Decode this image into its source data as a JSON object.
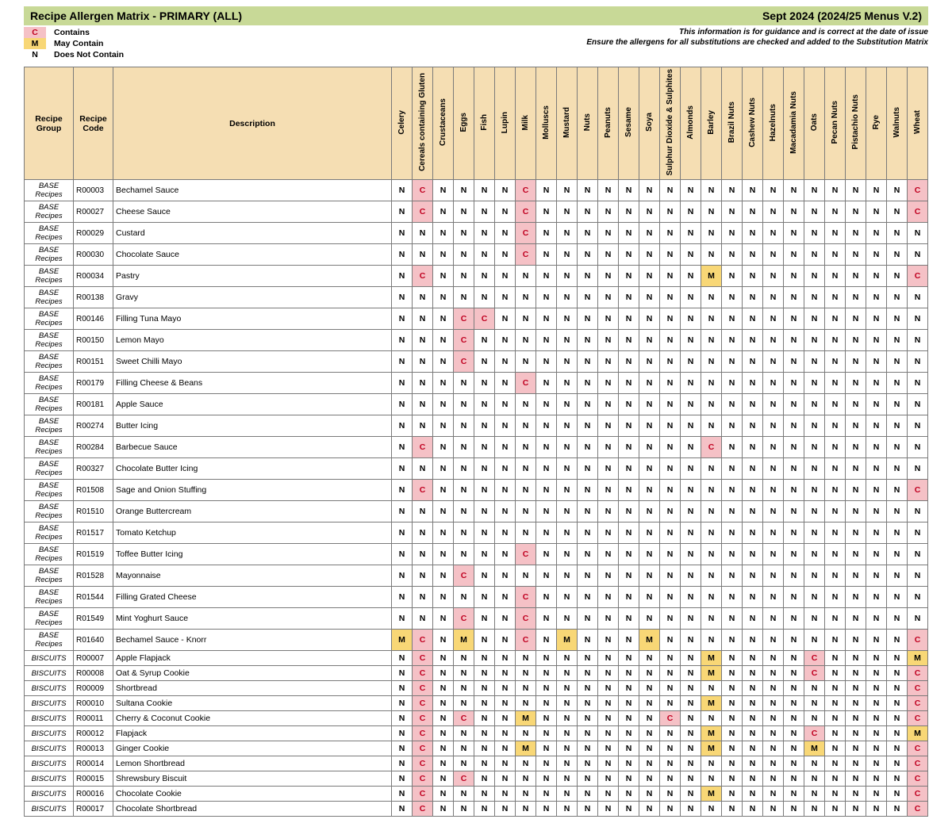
{
  "title": "Recipe Allergen Matrix - PRIMARY (ALL)",
  "version": "Sept 2024 (2024/25 Menus V.2)",
  "guidance_line1": "This information is for guidance and is correct at the date of issue",
  "guidance_line2": "Ensure the allergens for all substitutions are checked and added to the Substitution Matrix",
  "legend": [
    {
      "code": "C",
      "label": "Contains",
      "cls": "legend-bg-C"
    },
    {
      "code": "M",
      "label": "May Contain",
      "cls": "legend-bg-M"
    },
    {
      "code": "N",
      "label": "Does Not Contain",
      "cls": ""
    }
  ],
  "headers": {
    "group": "Recipe Group",
    "code": "Recipe Code",
    "desc": "Description"
  },
  "allergens": [
    "Celery",
    "Cereals containing Gluten",
    "Crustaceans",
    "Eggs",
    "Fish",
    "Lupin",
    "Milk",
    "Molluscs",
    "Mustard",
    "Nuts",
    "Peanuts",
    "Sesame",
    "Soya",
    "Sulphur Dioxide & Sulphites",
    "Almonds",
    "Barley",
    "Brazil Nuts",
    "Cashew Nuts",
    "Hazelnuts",
    "Macadamia Nuts",
    "Oats",
    "Pecan Nuts",
    "Pistachio Nuts",
    "Rye",
    "Walnuts",
    "Wheat"
  ],
  "colors": {
    "C_bg": "#f5c1c6",
    "C_fg": "#c00020",
    "M_bg": "#f8d776",
    "header_bg": "#f5deb3",
    "title_bg": "#c8d997",
    "border": "#7a7a7a"
  },
  "rows": [
    {
      "group": "BASE Recipes",
      "code": "R00003",
      "desc": "Bechamel Sauce",
      "v": [
        "N",
        "C",
        "N",
        "N",
        "N",
        "N",
        "C",
        "N",
        "N",
        "N",
        "N",
        "N",
        "N",
        "N",
        "N",
        "N",
        "N",
        "N",
        "N",
        "N",
        "N",
        "N",
        "N",
        "N",
        "N",
        "C"
      ]
    },
    {
      "group": "BASE Recipes",
      "code": "R00027",
      "desc": "Cheese Sauce",
      "v": [
        "N",
        "C",
        "N",
        "N",
        "N",
        "N",
        "C",
        "N",
        "N",
        "N",
        "N",
        "N",
        "N",
        "N",
        "N",
        "N",
        "N",
        "N",
        "N",
        "N",
        "N",
        "N",
        "N",
        "N",
        "N",
        "C"
      ]
    },
    {
      "group": "BASE Recipes",
      "code": "R00029",
      "desc": "Custard",
      "v": [
        "N",
        "N",
        "N",
        "N",
        "N",
        "N",
        "C",
        "N",
        "N",
        "N",
        "N",
        "N",
        "N",
        "N",
        "N",
        "N",
        "N",
        "N",
        "N",
        "N",
        "N",
        "N",
        "N",
        "N",
        "N",
        "N"
      ]
    },
    {
      "group": "BASE Recipes",
      "code": "R00030",
      "desc": "Chocolate Sauce",
      "v": [
        "N",
        "N",
        "N",
        "N",
        "N",
        "N",
        "C",
        "N",
        "N",
        "N",
        "N",
        "N",
        "N",
        "N",
        "N",
        "N",
        "N",
        "N",
        "N",
        "N",
        "N",
        "N",
        "N",
        "N",
        "N",
        "N"
      ]
    },
    {
      "group": "BASE Recipes",
      "code": "R00034",
      "desc": "Pastry",
      "v": [
        "N",
        "C",
        "N",
        "N",
        "N",
        "N",
        "N",
        "N",
        "N",
        "N",
        "N",
        "N",
        "N",
        "N",
        "N",
        "M",
        "N",
        "N",
        "N",
        "N",
        "N",
        "N",
        "N",
        "N",
        "N",
        "C"
      ]
    },
    {
      "group": "BASE Recipes",
      "code": "R00138",
      "desc": "Gravy",
      "v": [
        "N",
        "N",
        "N",
        "N",
        "N",
        "N",
        "N",
        "N",
        "N",
        "N",
        "N",
        "N",
        "N",
        "N",
        "N",
        "N",
        "N",
        "N",
        "N",
        "N",
        "N",
        "N",
        "N",
        "N",
        "N",
        "N"
      ]
    },
    {
      "group": "BASE Recipes",
      "code": "R00146",
      "desc": "Filling Tuna Mayo",
      "v": [
        "N",
        "N",
        "N",
        "C",
        "C",
        "N",
        "N",
        "N",
        "N",
        "N",
        "N",
        "N",
        "N",
        "N",
        "N",
        "N",
        "N",
        "N",
        "N",
        "N",
        "N",
        "N",
        "N",
        "N",
        "N",
        "N"
      ]
    },
    {
      "group": "BASE Recipes",
      "code": "R00150",
      "desc": "Lemon Mayo",
      "v": [
        "N",
        "N",
        "N",
        "C",
        "N",
        "N",
        "N",
        "N",
        "N",
        "N",
        "N",
        "N",
        "N",
        "N",
        "N",
        "N",
        "N",
        "N",
        "N",
        "N",
        "N",
        "N",
        "N",
        "N",
        "N",
        "N"
      ]
    },
    {
      "group": "BASE Recipes",
      "code": "R00151",
      "desc": "Sweet Chilli Mayo",
      "v": [
        "N",
        "N",
        "N",
        "C",
        "N",
        "N",
        "N",
        "N",
        "N",
        "N",
        "N",
        "N",
        "N",
        "N",
        "N",
        "N",
        "N",
        "N",
        "N",
        "N",
        "N",
        "N",
        "N",
        "N",
        "N",
        "N"
      ]
    },
    {
      "group": "BASE Recipes",
      "code": "R00179",
      "desc": "Filling Cheese & Beans",
      "v": [
        "N",
        "N",
        "N",
        "N",
        "N",
        "N",
        "C",
        "N",
        "N",
        "N",
        "N",
        "N",
        "N",
        "N",
        "N",
        "N",
        "N",
        "N",
        "N",
        "N",
        "N",
        "N",
        "N",
        "N",
        "N",
        "N"
      ]
    },
    {
      "group": "BASE Recipes",
      "code": "R00181",
      "desc": "Apple Sauce",
      "v": [
        "N",
        "N",
        "N",
        "N",
        "N",
        "N",
        "N",
        "N",
        "N",
        "N",
        "N",
        "N",
        "N",
        "N",
        "N",
        "N",
        "N",
        "N",
        "N",
        "N",
        "N",
        "N",
        "N",
        "N",
        "N",
        "N"
      ]
    },
    {
      "group": "BASE Recipes",
      "code": "R00274",
      "desc": "Butter Icing",
      "v": [
        "N",
        "N",
        "N",
        "N",
        "N",
        "N",
        "N",
        "N",
        "N",
        "N",
        "N",
        "N",
        "N",
        "N",
        "N",
        "N",
        "N",
        "N",
        "N",
        "N",
        "N",
        "N",
        "N",
        "N",
        "N",
        "N"
      ]
    },
    {
      "group": "BASE Recipes",
      "code": "R00284",
      "desc": "Barbecue Sauce",
      "v": [
        "N",
        "C",
        "N",
        "N",
        "N",
        "N",
        "N",
        "N",
        "N",
        "N",
        "N",
        "N",
        "N",
        "N",
        "N",
        "C",
        "N",
        "N",
        "N",
        "N",
        "N",
        "N",
        "N",
        "N",
        "N",
        "N"
      ]
    },
    {
      "group": "BASE Recipes",
      "code": "R00327",
      "desc": "Chocolate Butter Icing",
      "v": [
        "N",
        "N",
        "N",
        "N",
        "N",
        "N",
        "N",
        "N",
        "N",
        "N",
        "N",
        "N",
        "N",
        "N",
        "N",
        "N",
        "N",
        "N",
        "N",
        "N",
        "N",
        "N",
        "N",
        "N",
        "N",
        "N"
      ]
    },
    {
      "group": "BASE Recipes",
      "code": "R01508",
      "desc": "Sage and Onion Stuffing",
      "v": [
        "N",
        "C",
        "N",
        "N",
        "N",
        "N",
        "N",
        "N",
        "N",
        "N",
        "N",
        "N",
        "N",
        "N",
        "N",
        "N",
        "N",
        "N",
        "N",
        "N",
        "N",
        "N",
        "N",
        "N",
        "N",
        "C"
      ]
    },
    {
      "group": "BASE Recipes",
      "code": "R01510",
      "desc": "Orange Buttercream",
      "v": [
        "N",
        "N",
        "N",
        "N",
        "N",
        "N",
        "N",
        "N",
        "N",
        "N",
        "N",
        "N",
        "N",
        "N",
        "N",
        "N",
        "N",
        "N",
        "N",
        "N",
        "N",
        "N",
        "N",
        "N",
        "N",
        "N"
      ]
    },
    {
      "group": "BASE Recipes",
      "code": "R01517",
      "desc": "Tomato Ketchup",
      "v": [
        "N",
        "N",
        "N",
        "N",
        "N",
        "N",
        "N",
        "N",
        "N",
        "N",
        "N",
        "N",
        "N",
        "N",
        "N",
        "N",
        "N",
        "N",
        "N",
        "N",
        "N",
        "N",
        "N",
        "N",
        "N",
        "N"
      ]
    },
    {
      "group": "BASE Recipes",
      "code": "R01519",
      "desc": "Toffee Butter Icing",
      "v": [
        "N",
        "N",
        "N",
        "N",
        "N",
        "N",
        "C",
        "N",
        "N",
        "N",
        "N",
        "N",
        "N",
        "N",
        "N",
        "N",
        "N",
        "N",
        "N",
        "N",
        "N",
        "N",
        "N",
        "N",
        "N",
        "N"
      ]
    },
    {
      "group": "BASE Recipes",
      "code": "R01528",
      "desc": "Mayonnaise",
      "v": [
        "N",
        "N",
        "N",
        "C",
        "N",
        "N",
        "N",
        "N",
        "N",
        "N",
        "N",
        "N",
        "N",
        "N",
        "N",
        "N",
        "N",
        "N",
        "N",
        "N",
        "N",
        "N",
        "N",
        "N",
        "N",
        "N"
      ]
    },
    {
      "group": "BASE Recipes",
      "code": "R01544",
      "desc": "Filling Grated Cheese",
      "v": [
        "N",
        "N",
        "N",
        "N",
        "N",
        "N",
        "C",
        "N",
        "N",
        "N",
        "N",
        "N",
        "N",
        "N",
        "N",
        "N",
        "N",
        "N",
        "N",
        "N",
        "N",
        "N",
        "N",
        "N",
        "N",
        "N"
      ]
    },
    {
      "group": "BASE Recipes",
      "code": "R01549",
      "desc": "Mint Yoghurt Sauce",
      "v": [
        "N",
        "N",
        "N",
        "C",
        "N",
        "N",
        "C",
        "N",
        "N",
        "N",
        "N",
        "N",
        "N",
        "N",
        "N",
        "N",
        "N",
        "N",
        "N",
        "N",
        "N",
        "N",
        "N",
        "N",
        "N",
        "N"
      ]
    },
    {
      "group": "BASE Recipes",
      "code": "R01640",
      "desc": "Bechamel Sauce - Knorr",
      "v": [
        "M",
        "C",
        "N",
        "M",
        "N",
        "N",
        "C",
        "N",
        "M",
        "N",
        "N",
        "N",
        "M",
        "N",
        "N",
        "N",
        "N",
        "N",
        "N",
        "N",
        "N",
        "N",
        "N",
        "N",
        "N",
        "C"
      ]
    },
    {
      "group": "BISCUITS",
      "code": "R00007",
      "desc": "Apple Flapjack",
      "v": [
        "N",
        "C",
        "N",
        "N",
        "N",
        "N",
        "N",
        "N",
        "N",
        "N",
        "N",
        "N",
        "N",
        "N",
        "N",
        "M",
        "N",
        "N",
        "N",
        "N",
        "C",
        "N",
        "N",
        "N",
        "N",
        "M"
      ]
    },
    {
      "group": "BISCUITS",
      "code": "R00008",
      "desc": "Oat & Syrup Cookie",
      "v": [
        "N",
        "C",
        "N",
        "N",
        "N",
        "N",
        "N",
        "N",
        "N",
        "N",
        "N",
        "N",
        "N",
        "N",
        "N",
        "M",
        "N",
        "N",
        "N",
        "N",
        "C",
        "N",
        "N",
        "N",
        "N",
        "C"
      ]
    },
    {
      "group": "BISCUITS",
      "code": "R00009",
      "desc": "Shortbread",
      "v": [
        "N",
        "C",
        "N",
        "N",
        "N",
        "N",
        "N",
        "N",
        "N",
        "N",
        "N",
        "N",
        "N",
        "N",
        "N",
        "N",
        "N",
        "N",
        "N",
        "N",
        "N",
        "N",
        "N",
        "N",
        "N",
        "C"
      ]
    },
    {
      "group": "BISCUITS",
      "code": "R00010",
      "desc": "Sultana Cookie",
      "v": [
        "N",
        "C",
        "N",
        "N",
        "N",
        "N",
        "N",
        "N",
        "N",
        "N",
        "N",
        "N",
        "N",
        "N",
        "N",
        "M",
        "N",
        "N",
        "N",
        "N",
        "N",
        "N",
        "N",
        "N",
        "N",
        "C"
      ]
    },
    {
      "group": "BISCUITS",
      "code": "R00011",
      "desc": "Cherry & Coconut Cookie",
      "v": [
        "N",
        "C",
        "N",
        "C",
        "N",
        "N",
        "M",
        "N",
        "N",
        "N",
        "N",
        "N",
        "N",
        "C",
        "N",
        "N",
        "N",
        "N",
        "N",
        "N",
        "N",
        "N",
        "N",
        "N",
        "N",
        "C"
      ]
    },
    {
      "group": "BISCUITS",
      "code": "R00012",
      "desc": "Flapjack",
      "v": [
        "N",
        "C",
        "N",
        "N",
        "N",
        "N",
        "N",
        "N",
        "N",
        "N",
        "N",
        "N",
        "N",
        "N",
        "N",
        "M",
        "N",
        "N",
        "N",
        "N",
        "C",
        "N",
        "N",
        "N",
        "N",
        "M"
      ]
    },
    {
      "group": "BISCUITS",
      "code": "R00013",
      "desc": "Ginger Cookie",
      "v": [
        "N",
        "C",
        "N",
        "N",
        "N",
        "N",
        "M",
        "N",
        "N",
        "N",
        "N",
        "N",
        "N",
        "N",
        "N",
        "M",
        "N",
        "N",
        "N",
        "N",
        "M",
        "N",
        "N",
        "N",
        "N",
        "C"
      ]
    },
    {
      "group": "BISCUITS",
      "code": "R00014",
      "desc": "Lemon Shortbread",
      "v": [
        "N",
        "C",
        "N",
        "N",
        "N",
        "N",
        "N",
        "N",
        "N",
        "N",
        "N",
        "N",
        "N",
        "N",
        "N",
        "N",
        "N",
        "N",
        "N",
        "N",
        "N",
        "N",
        "N",
        "N",
        "N",
        "C"
      ]
    },
    {
      "group": "BISCUITS",
      "code": "R00015",
      "desc": "Shrewsbury Biscuit",
      "v": [
        "N",
        "C",
        "N",
        "C",
        "N",
        "N",
        "N",
        "N",
        "N",
        "N",
        "N",
        "N",
        "N",
        "N",
        "N",
        "N",
        "N",
        "N",
        "N",
        "N",
        "N",
        "N",
        "N",
        "N",
        "N",
        "C"
      ]
    },
    {
      "group": "BISCUITS",
      "code": "R00016",
      "desc": "Chocolate Cookie",
      "v": [
        "N",
        "C",
        "N",
        "N",
        "N",
        "N",
        "N",
        "N",
        "N",
        "N",
        "N",
        "N",
        "N",
        "N",
        "N",
        "M",
        "N",
        "N",
        "N",
        "N",
        "N",
        "N",
        "N",
        "N",
        "N",
        "C"
      ]
    },
    {
      "group": "BISCUITS",
      "code": "R00017",
      "desc": "Chocolate Shortbread",
      "v": [
        "N",
        "C",
        "N",
        "N",
        "N",
        "N",
        "N",
        "N",
        "N",
        "N",
        "N",
        "N",
        "N",
        "N",
        "N",
        "N",
        "N",
        "N",
        "N",
        "N",
        "N",
        "N",
        "N",
        "N",
        "N",
        "C"
      ]
    }
  ]
}
